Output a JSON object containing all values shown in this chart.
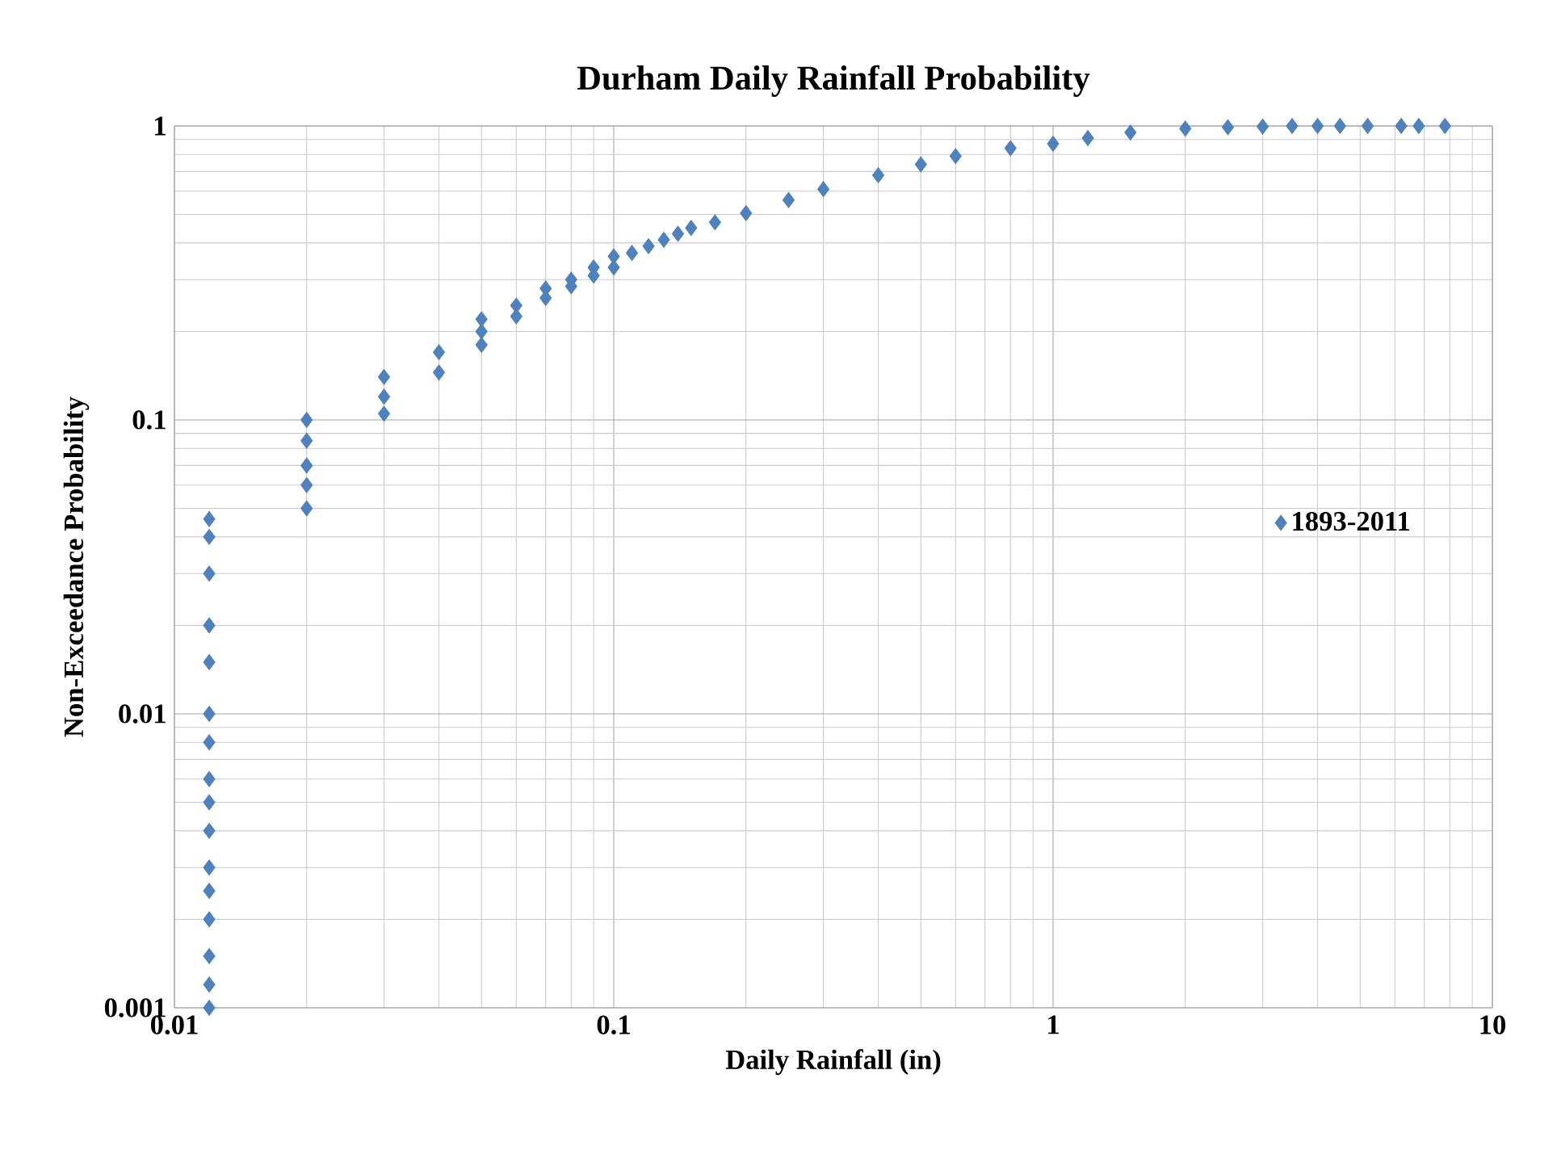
{
  "chart_data": {
    "type": "scatter",
    "title": "Durham Daily Rainfall Probability",
    "xlabel": "Daily Rainfall (in)",
    "ylabel": "Non-Exceedance Probability",
    "log": "xy",
    "xlim": [
      0.01,
      10
    ],
    "ylim": [
      0.001,
      1
    ],
    "xticks": [
      0.01,
      0.1,
      1,
      10
    ],
    "yticks": [
      0.001,
      0.01,
      0.1,
      1
    ],
    "grid": true,
    "legend": "right",
    "marker": "diamond",
    "series": [
      {
        "name": "1893-2011",
        "color": "#4f81bd",
        "x": [
          0.012,
          0.012,
          0.012,
          0.012,
          0.012,
          0.012,
          0.012,
          0.012,
          0.012,
          0.012,
          0.012,
          0.012,
          0.012,
          0.012,
          0.012,
          0.012,
          0.02,
          0.02,
          0.02,
          0.02,
          0.02,
          0.03,
          0.03,
          0.03,
          0.04,
          0.04,
          0.05,
          0.05,
          0.05,
          0.06,
          0.06,
          0.07,
          0.07,
          0.08,
          0.08,
          0.09,
          0.09,
          0.1,
          0.1,
          0.11,
          0.12,
          0.13,
          0.14,
          0.15,
          0.17,
          0.2,
          0.25,
          0.3,
          0.4,
          0.5,
          0.6,
          0.8,
          1,
          1.2,
          1.5,
          2,
          2.5,
          3,
          3.5,
          4,
          4.5,
          5.2,
          6.2,
          6.8,
          7.8
        ],
        "values": [
          0.001,
          0.0012,
          0.0015,
          0.002,
          0.0025,
          0.003,
          0.004,
          0.005,
          0.006,
          0.008,
          0.01,
          0.015,
          0.02,
          0.03,
          0.04,
          0.046,
          0.05,
          0.06,
          0.07,
          0.085,
          0.1,
          0.105,
          0.12,
          0.14,
          0.145,
          0.17,
          0.18,
          0.2,
          0.22,
          0.225,
          0.245,
          0.26,
          0.28,
          0.285,
          0.3,
          0.31,
          0.33,
          0.33,
          0.36,
          0.37,
          0.39,
          0.41,
          0.43,
          0.45,
          0.47,
          0.505,
          0.56,
          0.61,
          0.68,
          0.74,
          0.79,
          0.84,
          0.87,
          0.91,
          0.95,
          0.98,
          0.99,
          0.995,
          1,
          1,
          1,
          1,
          1,
          1,
          1
        ]
      }
    ]
  }
}
